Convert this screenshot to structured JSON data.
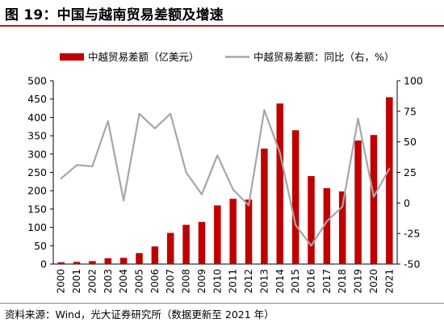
{
  "figure": {
    "title": "图 19：中国与越南贸易差额及增速",
    "source": "资料来源：Wind，光大证券研究所（数据更新至 2021 年）"
  },
  "chart_data": {
    "type": "bar",
    "categories": [
      "2000",
      "2001",
      "2002",
      "2003",
      "2004",
      "2005",
      "2006",
      "2007",
      "2008",
      "2009",
      "2010",
      "2011",
      "2012",
      "2013",
      "2014",
      "2015",
      "2016",
      "2017",
      "2018",
      "2019",
      "2020",
      "2021"
    ],
    "series": [
      {
        "name": "中越贸易差额（亿美元）",
        "type": "bar",
        "axis": "left",
        "color": "#c00000",
        "values": [
          5,
          6,
          8,
          16,
          17,
          30,
          48,
          85,
          107,
          115,
          160,
          178,
          176,
          315,
          438,
          365,
          240,
          207,
          198,
          337,
          352,
          455
        ]
      },
      {
        "name": "中越贸易差额：同比（右，%）",
        "type": "line",
        "axis": "right",
        "color": "#a6a6a6",
        "values": [
          20,
          31,
          30,
          67,
          2,
          73,
          61,
          73,
          25,
          7,
          39,
          11,
          -2,
          76,
          41,
          -18,
          -35,
          -15,
          -3,
          69,
          5,
          28
        ]
      }
    ],
    "y_left": {
      "min": 0,
      "max": 500,
      "ticks": [
        0,
        50,
        100,
        150,
        200,
        250,
        300,
        350,
        400,
        450,
        500
      ]
    },
    "y_right": {
      "min": -50,
      "max": 100,
      "ticks": [
        -50,
        -25,
        0,
        25,
        50,
        75,
        100
      ]
    },
    "legend_position": "top",
    "grid": false
  }
}
